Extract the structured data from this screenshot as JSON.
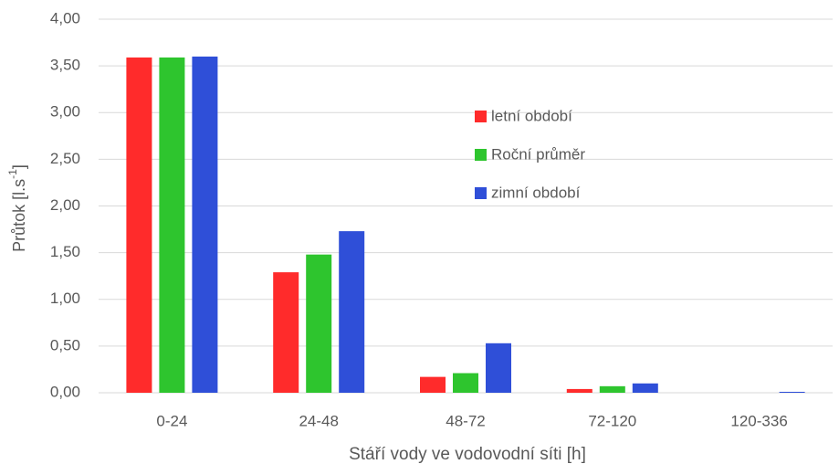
{
  "chart_data": {
    "type": "bar",
    "ylabel": [
      "Průtok [l.s",
      "-1",
      "]"
    ],
    "xlabel": "Stáří vody ve vodovodní síti [h]",
    "categories": [
      "0-24",
      "24-48",
      "48-72",
      "72-120",
      "120-336"
    ],
    "series": [
      {
        "name": "letní období",
        "color": "#ff2b2b",
        "values": [
          3.59,
          1.29,
          0.17,
          0.04,
          0.0
        ]
      },
      {
        "name": "Roční průměr",
        "color": "#2ec52e",
        "values": [
          3.59,
          1.48,
          0.21,
          0.07,
          0.0
        ]
      },
      {
        "name": "zimní období",
        "color": "#2f4fd8",
        "values": [
          3.6,
          1.73,
          0.53,
          0.1,
          0.01
        ]
      }
    ],
    "ylim": [
      0,
      4
    ],
    "yticks": [
      {
        "value": 0,
        "label": "0,00"
      },
      {
        "value": 0.5,
        "label": "0,50"
      },
      {
        "value": 1,
        "label": "1,00"
      },
      {
        "value": 1.5,
        "label": "1,50"
      },
      {
        "value": 2,
        "label": "2,00"
      },
      {
        "value": 2.5,
        "label": "2,50"
      },
      {
        "value": 3,
        "label": "3,00"
      },
      {
        "value": 3.5,
        "label": "3,50"
      },
      {
        "value": 4,
        "label": "4,00"
      }
    ],
    "grid": true
  }
}
